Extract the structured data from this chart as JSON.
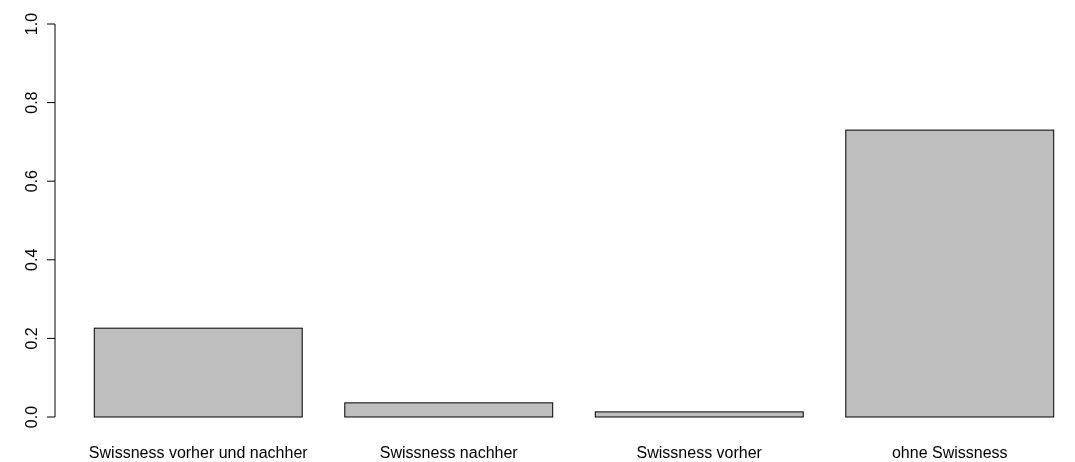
{
  "chart_data": {
    "type": "bar",
    "categories": [
      "Swissness vorher und nachher",
      "Swissness nachher",
      "Swissness vorher",
      "ohne Swissness"
    ],
    "values": [
      0.226,
      0.036,
      0.013,
      0.73
    ],
    "color": "#bebebe",
    "ylim": [
      0,
      1
    ],
    "yticks": [
      {
        "value": 0,
        "label": "0.0"
      },
      {
        "value": 0.2,
        "label": "0.2"
      },
      {
        "value": 0.4,
        "label": "0.4"
      },
      {
        "value": 0.6,
        "label": "0.6"
      },
      {
        "value": 0.8,
        "label": "0.8"
      },
      {
        "value": 1,
        "label": "1.0"
      }
    ],
    "grid": false
  }
}
